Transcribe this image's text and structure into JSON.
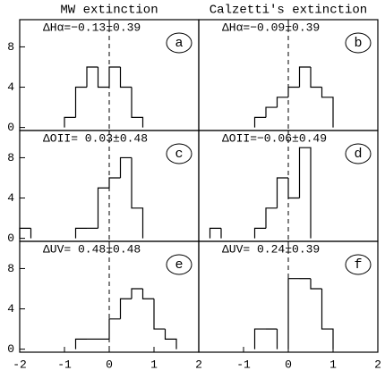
{
  "chart_data": [
    {
      "type": "histogram",
      "title": "MW extinction",
      "annotation": "ΔHα=−0.13±0.39",
      "label": "a",
      "bins": [
        -1,
        -0.75,
        -0.5,
        -0.25,
        0,
        0.25,
        0.5,
        0.75
      ],
      "values": [
        1,
        4,
        6,
        4,
        6,
        4,
        1
      ],
      "xlim": [
        -2,
        2
      ],
      "ylim": [
        -0.3,
        10.7
      ],
      "yticks": [
        0,
        4,
        8
      ],
      "vline": 0
    },
    {
      "type": "histogram",
      "title": "Calzetti's extinction",
      "annotation": "ΔHα=−0.09±0.39",
      "label": "b",
      "bins": [
        -0.75,
        -0.5,
        -0.25,
        0,
        0.25,
        0.5,
        0.75,
        1
      ],
      "values": [
        1,
        2,
        3,
        4,
        6,
        4,
        3
      ],
      "xlim": [
        -2,
        2
      ],
      "ylim": [
        -0.3,
        10.7
      ],
      "vline": 0
    },
    {
      "type": "histogram",
      "annotation": "ΔOII= 0.03±0.48",
      "label": "c",
      "bins": [
        -2,
        -1.75,
        -1.5,
        -1.25,
        -1,
        -0.75,
        -0.5,
        -0.25,
        0,
        0.25,
        0.5,
        0.75
      ],
      "values": [
        1,
        0,
        0,
        0,
        0,
        1,
        1,
        5,
        6,
        8,
        3
      ],
      "xlim": [
        -2,
        2
      ],
      "ylim": [
        -0.3,
        10.7
      ],
      "yticks": [
        0,
        4,
        8
      ],
      "vline": 0
    },
    {
      "type": "histogram",
      "annotation": "ΔOII=−0.06±0.49",
      "label": "d",
      "bins": [
        -1.75,
        -1.5,
        -1.25,
        -1,
        -0.75,
        -0.5,
        -0.25,
        0,
        0.25,
        0.5
      ],
      "values": [
        1,
        0,
        0,
        0,
        1,
        3,
        6,
        4,
        9
      ],
      "xlim": [
        -2,
        2
      ],
      "ylim": [
        -0.3,
        10.7
      ],
      "vline": 0
    },
    {
      "type": "histogram",
      "annotation": "ΔUV= 0.48±0.48",
      "label": "e",
      "bins": [
        -0.75,
        -0.5,
        -0.25,
        0,
        0.25,
        0.5,
        0.75,
        1,
        1.25,
        1.5
      ],
      "values": [
        1,
        1,
        1,
        3,
        5,
        6,
        5,
        2,
        1
      ],
      "xlim": [
        -2,
        2
      ],
      "ylim": [
        -0.3,
        10.7
      ],
      "xticks": [
        -2,
        -1,
        0,
        1,
        2
      ],
      "yticks": [
        0,
        4,
        8
      ],
      "vline": 0
    },
    {
      "type": "histogram",
      "annotation": "ΔUV= 0.24±0.39",
      "label": "f",
      "bins": [
        -0.75,
        -0.5,
        -0.25,
        0,
        0.25,
        0.5,
        0.75,
        1
      ],
      "values": [
        2,
        2,
        0,
        7,
        7,
        6,
        2
      ],
      "xlim": [
        -2,
        2
      ],
      "ylim": [
        -0.3,
        10.7
      ],
      "xticks": [
        -1,
        0,
        1,
        2
      ],
      "vline": 0
    }
  ]
}
